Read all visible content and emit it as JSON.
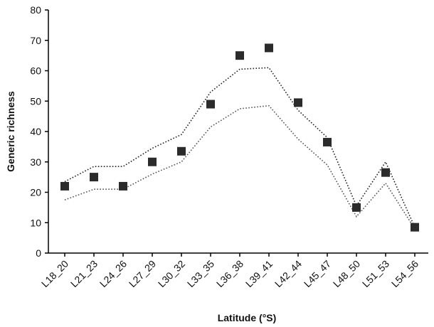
{
  "chart_data": {
    "type": "scatter",
    "categories": [
      "L18_20",
      "L21_23",
      "L24_26",
      "L27_29",
      "L30_32",
      "L33_35",
      "L36_38",
      "L39_41",
      "L42_44",
      "L45_47",
      "L48_50",
      "L51_53",
      "L54_56"
    ],
    "xlabel": "Latitude (°S)",
    "ylabel": "Generic richness",
    "ylim": [
      0,
      80
    ],
    "yticks": [
      0,
      10,
      20,
      30,
      40,
      50,
      60,
      70,
      80
    ],
    "grid": false,
    "legend": "none",
    "series": [
      {
        "values": [
          22,
          25,
          22,
          30,
          33.5,
          49,
          65,
          67.5,
          49.5,
          36.5,
          15,
          26.5,
          8.5
        ],
        "style": "square-markers",
        "color": "#2b2b2b"
      },
      {
        "values": [
          23.5,
          28.5,
          28.5,
          34.5,
          39,
          53,
          60.5,
          61,
          47,
          38,
          15.5,
          30,
          8.5
        ],
        "style": "dotted-line",
        "color": "#222222"
      },
      {
        "values": [
          17.5,
          21,
          21,
          26,
          30,
          41.5,
          47.5,
          48.5,
          37.5,
          29,
          12,
          23,
          8
        ],
        "style": "dotted-line",
        "color": "#555555"
      }
    ]
  }
}
